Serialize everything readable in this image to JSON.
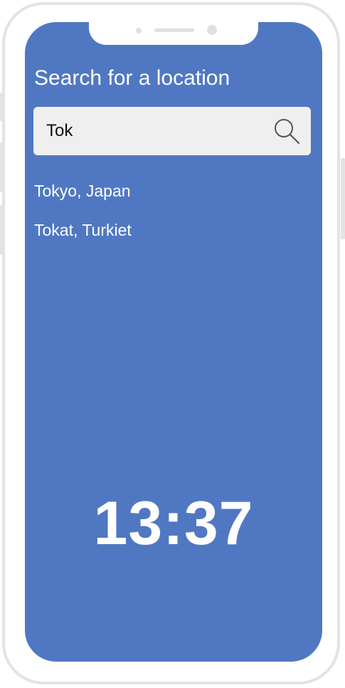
{
  "header": {
    "title": "Search for a location"
  },
  "search": {
    "value": "Tok",
    "icon": "search-icon"
  },
  "results": [
    {
      "label": "Tokyo, Japan"
    },
    {
      "label": "Tokat, Turkiet"
    }
  ],
  "clock": {
    "time": "13:37"
  },
  "colors": {
    "screen_background": "#5078c2",
    "search_background": "#efefef",
    "text": "#ffffff",
    "frame": "#e3e3e3"
  }
}
